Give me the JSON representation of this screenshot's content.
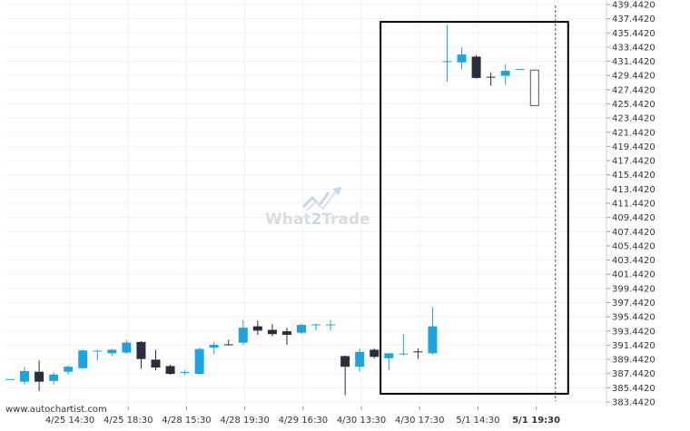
{
  "source_label": "www.autochartist.com",
  "watermark": {
    "part1": "What",
    "part2": "2",
    "part3": "Trade"
  },
  "colors": {
    "up": "#1fa3dc",
    "down": "#2a2d3a",
    "grid": "#eef0f3",
    "box": "#000000",
    "forecast": "#555555"
  },
  "chart_data": {
    "type": "candlestick",
    "title": "",
    "xlabel": "",
    "ylabel": "",
    "ylim": [
      383.442,
      439.442
    ],
    "y_ticks": [
      "439.4420",
      "437.4420",
      "435.4420",
      "433.4420",
      "431.4420",
      "429.4420",
      "427.4420",
      "425.4420",
      "423.4420",
      "421.4420",
      "419.4420",
      "417.4420",
      "415.4420",
      "413.4420",
      "411.4420",
      "409.4420",
      "407.4420",
      "405.4420",
      "403.4420",
      "401.4420",
      "399.4420",
      "397.4420",
      "395.4420",
      "393.4420",
      "391.4420",
      "389.4420",
      "387.4420",
      "385.4420",
      "383.4420"
    ],
    "x_tick_labels": [
      "4/25 14:30",
      "4/25 18:30",
      "4/28 15:30",
      "4/28 19:30",
      "4/29 16:30",
      "4/30 13:30",
      "4/30 17:30",
      "5/1 14:30",
      "5/1 19:30"
    ],
    "highlighted_x_label": "5/1 19:30",
    "x_tick_bar_index": [
      1,
      5,
      9,
      13,
      17,
      21,
      25,
      29,
      33
    ],
    "candles": [
      [
        386.6,
        386.6,
        386.6,
        386.6
      ],
      [
        386.3,
        388.4,
        385.9,
        387.8
      ],
      [
        387.7,
        389.3,
        385.0,
        386.3
      ],
      [
        386.4,
        387.6,
        385.9,
        387.3
      ],
      [
        387.7,
        388.6,
        387.3,
        388.4
      ],
      [
        388.2,
        390.9,
        388.1,
        390.7
      ],
      [
        390.6,
        390.8,
        389.3,
        390.6
      ],
      [
        390.3,
        390.9,
        389.9,
        390.8
      ],
      [
        390.4,
        392.2,
        390.2,
        391.8
      ],
      [
        391.9,
        392.0,
        388.1,
        389.5
      ],
      [
        389.4,
        390.8,
        387.9,
        388.3
      ],
      [
        388.5,
        388.7,
        387.3,
        387.4
      ],
      [
        387.5,
        388.0,
        387.2,
        387.6
      ],
      [
        387.4,
        391.1,
        387.3,
        390.9
      ],
      [
        391.1,
        391.9,
        390.2,
        391.5
      ],
      [
        391.5,
        392.2,
        391.4,
        391.4
      ],
      [
        391.8,
        395.0,
        391.5,
        393.9
      ],
      [
        394.1,
        394.9,
        392.9,
        393.5
      ],
      [
        393.6,
        394.4,
        392.7,
        393.0
      ],
      [
        393.4,
        393.9,
        391.5,
        392.9
      ],
      [
        393.2,
        394.5,
        393.0,
        394.3
      ],
      [
        394.3,
        394.5,
        393.5,
        394.3
      ],
      [
        394.3,
        395.0,
        393.5,
        394.3
      ],
      [
        389.9,
        390.0,
        384.4,
        388.4
      ],
      [
        388.4,
        391.0,
        387.7,
        390.5
      ],
      [
        390.8,
        391.0,
        389.6,
        389.8
      ],
      [
        389.6,
        390.3,
        387.9,
        390.3
      ],
      [
        390.1,
        393.0,
        390.0,
        390.2
      ],
      [
        390.5,
        391.0,
        389.5,
        390.4
      ],
      [
        390.3,
        396.8,
        390.1,
        394.1
      ],
      [
        431.4,
        436.6,
        428.6,
        431.4
      ],
      [
        431.3,
        433.4,
        430.3,
        432.4
      ],
      [
        432.1,
        432.3,
        429.0,
        429.1
      ],
      [
        429.2,
        429.9,
        428.0,
        429.1
      ],
      [
        429.4,
        431.0,
        428.1,
        430.1
      ],
      [
        430.3,
        430.3,
        430.3,
        430.3
      ]
    ],
    "forecast_candle": [
      425.2,
      430.2
    ],
    "event_box": {
      "from_bar": 23,
      "to_bar": 36,
      "top": 437.0,
      "bottom": 384.6
    },
    "event_line_bar": 35
  }
}
